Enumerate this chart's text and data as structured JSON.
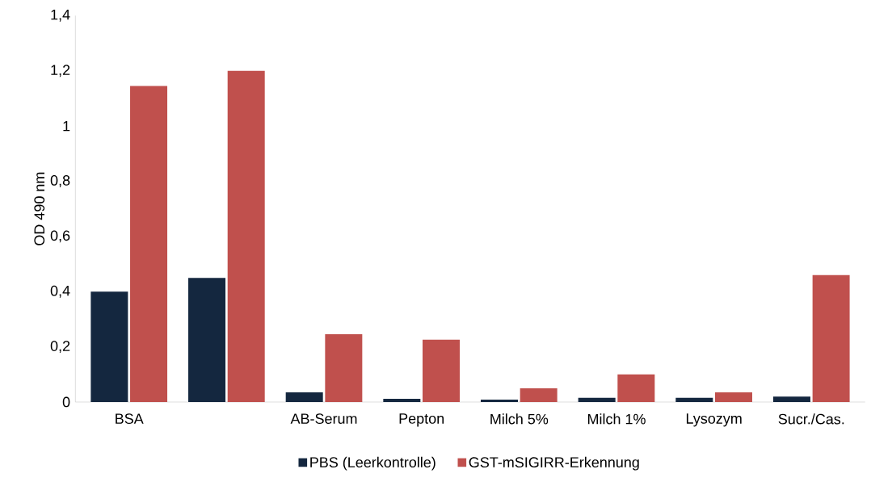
{
  "chart_data": {
    "type": "bar",
    "ylabel": "OD 490 nm",
    "categories": [
      "BSA",
      null,
      "AB-Serum",
      "Pepton",
      "Milch 5%",
      "Milch 1%",
      "Lysozym",
      "Sucr./Cas."
    ],
    "series": [
      {
        "name": "PBS (Leerkontrolle)",
        "color": "#14273f",
        "values": [
          0.4,
          0.45,
          0.035,
          0.012,
          0.009,
          0.015,
          0.015,
          0.02
        ]
      },
      {
        "name": "GST-mSIGIRR-Erkennung",
        "color": "#c0504d",
        "values": [
          1.145,
          1.2,
          0.246,
          0.226,
          0.05,
          0.1,
          0.035,
          0.46
        ]
      }
    ],
    "ylim": [
      0,
      1.4
    ],
    "yticks": [
      {
        "value": 0,
        "label": "0"
      },
      {
        "value": 0.2,
        "label": "0,2"
      },
      {
        "value": 0.4,
        "label": "0,4"
      },
      {
        "value": 0.6,
        "label": "0,6"
      },
      {
        "value": 0.8,
        "label": "0,8"
      },
      {
        "value": 1,
        "label": "1"
      },
      {
        "value": 1.2,
        "label": "1,2"
      },
      {
        "value": 1.4,
        "label": "1,4"
      }
    ],
    "grid": false,
    "legend": "bottom"
  }
}
